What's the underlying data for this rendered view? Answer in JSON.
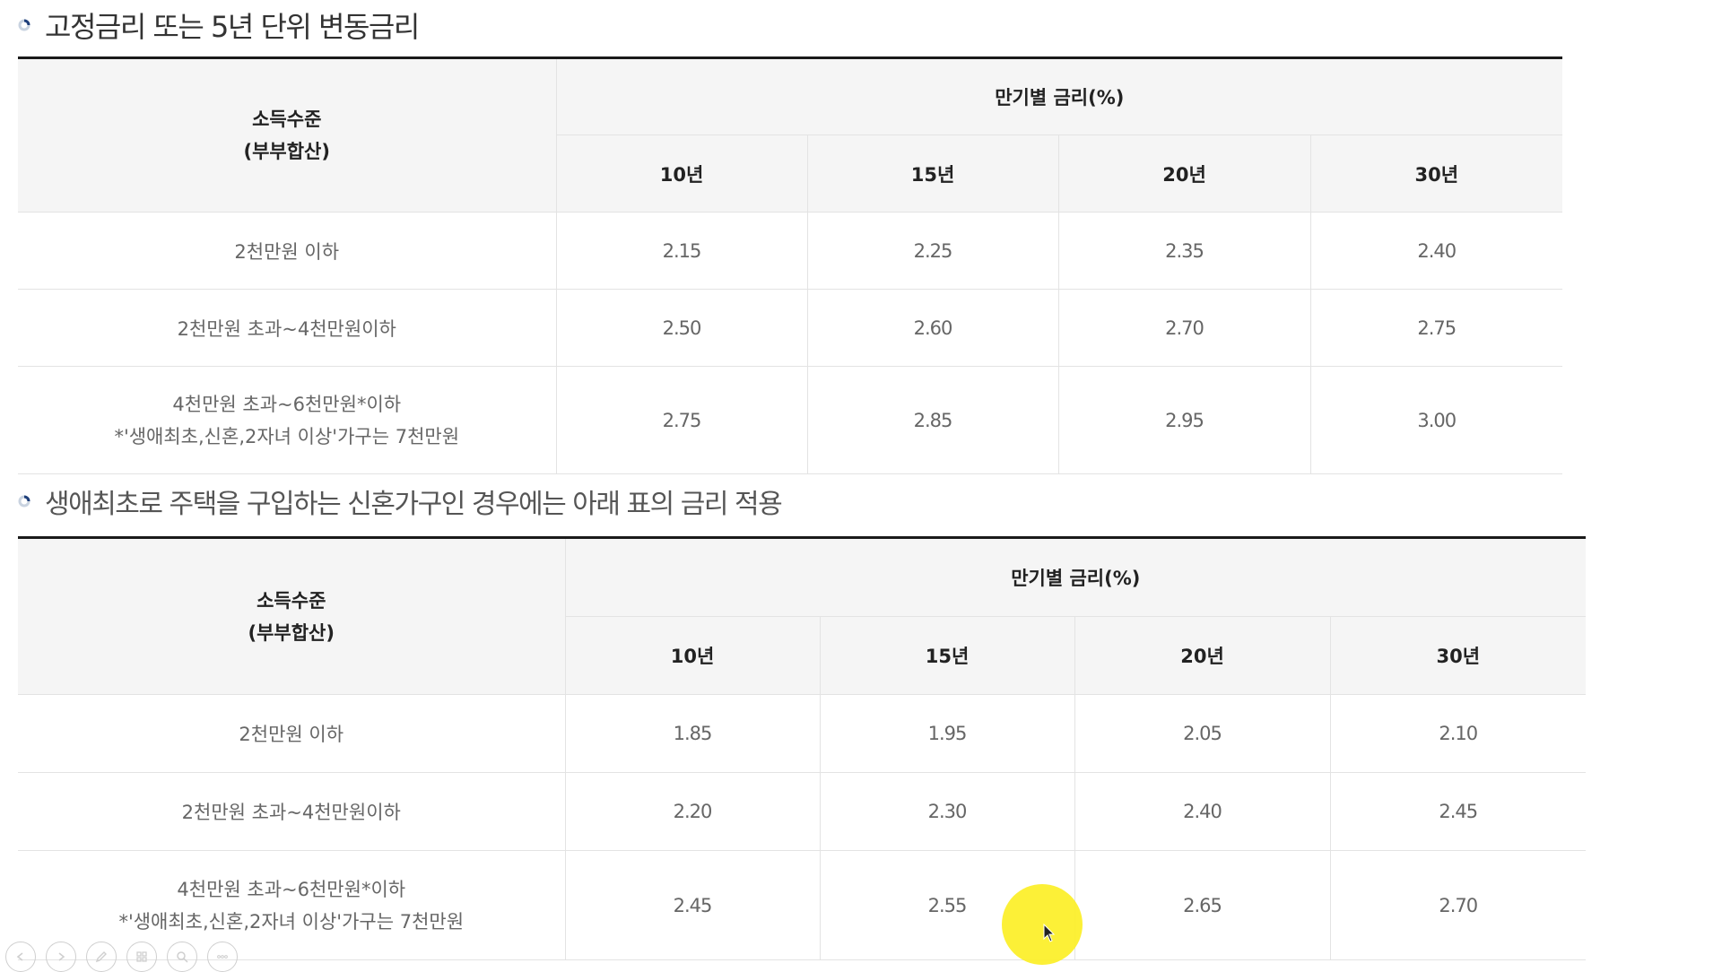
{
  "sections": [
    {
      "title": "고정금리 또는 5년 단위 변동금리",
      "table": {
        "header": {
          "income_label_line1": "소득수준",
          "income_label_line2": "(부부합산)",
          "rate_group": "만기별 금리(%)",
          "terms": [
            "10년",
            "15년",
            "20년",
            "30년"
          ]
        },
        "rows": [
          {
            "income_line1": "2천만원 이하",
            "income_line2": "",
            "rates": [
              "2.15",
              "2.25",
              "2.35",
              "2.40"
            ]
          },
          {
            "income_line1": "2천만원 초과~4천만원이하",
            "income_line2": "",
            "rates": [
              "2.50",
              "2.60",
              "2.70",
              "2.75"
            ]
          },
          {
            "income_line1": "4천만원 초과~6천만원*이하",
            "income_line2": "*'생애최초,신혼,2자녀 이상'가구는 7천만원",
            "rates": [
              "2.75",
              "2.85",
              "2.95",
              "3.00"
            ]
          }
        ]
      }
    },
    {
      "title": "생애최초로 주택을 구입하는 신혼가구인 경우에는 아래 표의 금리 적용",
      "table": {
        "header": {
          "income_label_line1": "소득수준",
          "income_label_line2": "(부부합산)",
          "rate_group": "만기별 금리(%)",
          "terms": [
            "10년",
            "15년",
            "20년",
            "30년"
          ]
        },
        "rows": [
          {
            "income_line1": "2천만원 이하",
            "income_line2": "",
            "rates": [
              "1.85",
              "1.95",
              "2.05",
              "2.10"
            ]
          },
          {
            "income_line1": "2천만원 초과~4천만원이하",
            "income_line2": "",
            "rates": [
              "2.20",
              "2.30",
              "2.40",
              "2.45"
            ]
          },
          {
            "income_line1": "4천만원 초과~6천만원*이하",
            "income_line2": "*'생애최초,신혼,2자녀 이상'가구는 7천만원",
            "rates": [
              "2.45",
              "2.55",
              "2.65",
              "2.70"
            ]
          }
        ]
      }
    }
  ],
  "toolbar": {
    "buttons": [
      "previous-icon",
      "next-icon",
      "pen-icon",
      "slides-icon",
      "zoom-icon",
      "more-icon"
    ]
  },
  "colors": {
    "header_bg": "#f5f5f5",
    "top_border": "#1a1a1a",
    "cursor_highlight": "#fcee21"
  }
}
